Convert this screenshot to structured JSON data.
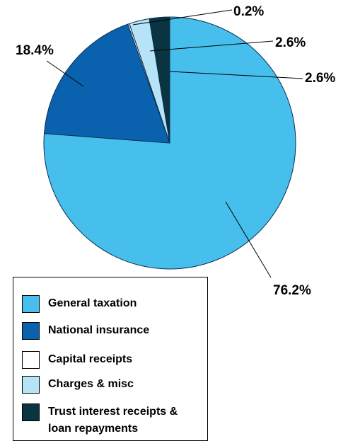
{
  "chart_data": {
    "type": "pie",
    "title": "",
    "slices": [
      {
        "name": "General taxation",
        "value": 76.2,
        "label": "76.2%",
        "color": "#46bfec"
      },
      {
        "name": "National insurance",
        "value": 18.4,
        "label": "18.4%",
        "color": "#0a62ae"
      },
      {
        "name": "Capital receipts",
        "value": 0.2,
        "label": "0.2%",
        "color": "#ffffff"
      },
      {
        "name": "Charges & misc",
        "value": 2.6,
        "label": "2.6%",
        "color": "#b7e3f6"
      },
      {
        "name": "Trust interest receipts & loan repayments",
        "value": 2.6,
        "label": "2.6%",
        "color": "#0b3442"
      }
    ],
    "legend_position": "bottom-left"
  },
  "legend": {
    "items": [
      {
        "line1": "General taxation",
        "line2": ""
      },
      {
        "line1": "National insurance",
        "line2": ""
      },
      {
        "line1": "Capital receipts",
        "line2": ""
      },
      {
        "line1": "Charges & misc",
        "line2": ""
      },
      {
        "line1": "Trust interest receipts &",
        "line2": "loan repayments"
      }
    ]
  }
}
